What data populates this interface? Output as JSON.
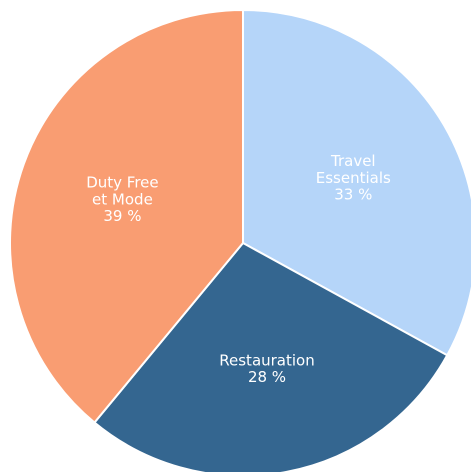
{
  "chart_data": {
    "type": "pie",
    "categories": [
      "Travel\nEssentials",
      "Restauration",
      "Duty Free\net Mode"
    ],
    "values": [
      33,
      28,
      39
    ],
    "value_labels": [
      "33 %",
      "28 %",
      "39 %"
    ],
    "colors": [
      "#b5d5f9",
      "#346690",
      "#f99d72"
    ]
  }
}
